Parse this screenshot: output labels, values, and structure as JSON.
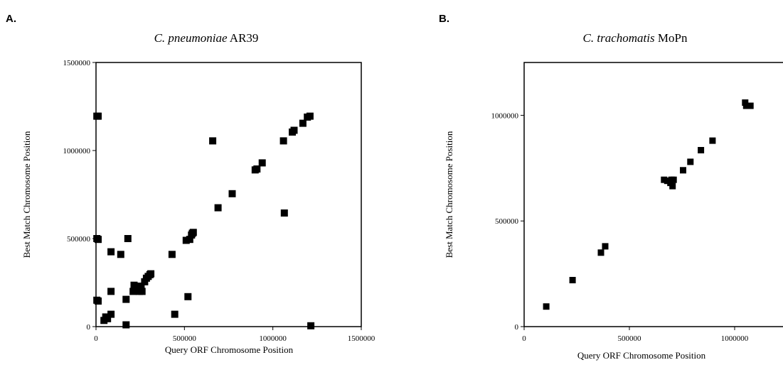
{
  "panels": [
    {
      "letter": "A.",
      "title_italic": "C. pneumoniae",
      "title_rest": " AR39"
    },
    {
      "letter": "B.",
      "title_italic": "C. trachomatis",
      "title_rest": " MoPn"
    }
  ],
  "chart_data": [
    {
      "type": "scatter",
      "title": "C. pneumoniae AR39",
      "xlabel": "Query ORF Chromosome Position",
      "ylabel": "Best Match Chromosome Position",
      "xlim": [
        0,
        1500000
      ],
      "ylim": [
        0,
        1500000
      ],
      "xticks": [
        0,
        500000,
        1000000,
        1500000
      ],
      "yticks": [
        0,
        500000,
        1000000,
        1500000
      ],
      "grid": false,
      "series": [
        {
          "x": [
            5000,
            12000,
            5000,
            12000,
            5000,
            12000,
            45000,
            55000,
            65000,
            85000,
            85000,
            85000,
            140000,
            170000,
            170000,
            180000,
            210000,
            215000,
            225000,
            235000,
            245000,
            255000,
            260000,
            275000,
            285000,
            295000,
            305000,
            310000,
            430000,
            445000,
            510000,
            520000,
            530000,
            540000,
            545000,
            550000,
            660000,
            690000,
            770000,
            900000,
            910000,
            940000,
            1060000,
            1065000,
            1110000,
            1120000,
            1170000,
            1195000,
            1210000,
            1215000
          ],
          "y": [
            1195000,
            1195000,
            500000,
            495000,
            150000,
            145000,
            35000,
            55000,
            45000,
            70000,
            200000,
            425000,
            410000,
            155000,
            10000,
            500000,
            200000,
            235000,
            220000,
            210000,
            200000,
            230000,
            200000,
            255000,
            275000,
            285000,
            295000,
            300000,
            410000,
            70000,
            490000,
            170000,
            495000,
            520000,
            530000,
            535000,
            1055000,
            675000,
            755000,
            890000,
            895000,
            930000,
            1055000,
            645000,
            1105000,
            1115000,
            1155000,
            1190000,
            1195000,
            5000
          ]
        }
      ]
    },
    {
      "type": "scatter",
      "title": "C. trachomatis MoPn",
      "xlabel": "Query ORF Chromosome Position",
      "ylabel": "Best Match Chromosome Position",
      "xlim": [
        0,
        1250000
      ],
      "ylim": [
        0,
        1250000
      ],
      "xticks": [
        0,
        500000,
        1000000
      ],
      "yticks": [
        0,
        500000,
        1000000
      ],
      "grid": false,
      "series": [
        {
          "x": [
            105000,
            230000,
            365000,
            385000,
            665000,
            680000,
            695000,
            700000,
            705000,
            710000,
            755000,
            790000,
            840000,
            895000,
            1050000,
            1055000,
            1075000
          ],
          "y": [
            95000,
            220000,
            350000,
            380000,
            695000,
            690000,
            680000,
            695000,
            665000,
            695000,
            740000,
            780000,
            835000,
            880000,
            1060000,
            1045000,
            1045000
          ]
        }
      ]
    }
  ]
}
